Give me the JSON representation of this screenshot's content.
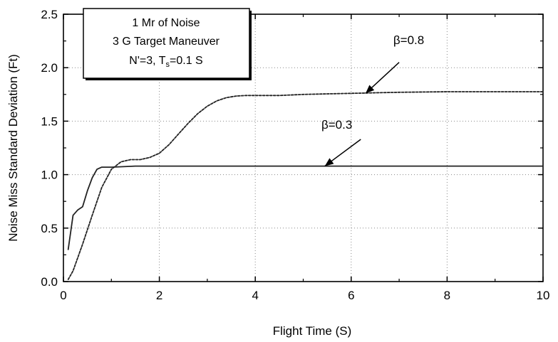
{
  "chart_data": {
    "type": "line",
    "xlabel": "Flight Time (S)",
    "ylabel": "Noise Miss Standard Deviation (Ft)",
    "xlim": [
      0,
      10
    ],
    "ylim": [
      0,
      2.5
    ],
    "xticks": [
      0,
      2,
      4,
      6,
      8,
      10
    ],
    "yticks": [
      0.0,
      0.5,
      1.0,
      1.5,
      2.0,
      2.5
    ],
    "xtick_labels": [
      "0",
      "2",
      "4",
      "6",
      "8",
      "10"
    ],
    "ytick_labels": [
      "0.0",
      "0.5",
      "1.0",
      "1.5",
      "2.0",
      "2.5"
    ],
    "grid": true,
    "legend_box": {
      "line1": "1 Mr of Noise",
      "line2": "3 G Target Maneuver",
      "line3_prefix": "N'=3,  T",
      "line3_sub": "s",
      "line3_suffix": "=0.1 S"
    },
    "series": [
      {
        "name": "β=0.3",
        "style": "solid",
        "x": [
          0.1,
          0.2,
          0.3,
          0.4,
          0.5,
          0.6,
          0.7,
          0.8,
          1.0,
          1.5,
          2.0,
          3.0,
          4.0,
          5.0,
          6.0,
          7.0,
          8.0,
          9.0,
          10.0
        ],
        "y": [
          0.3,
          0.62,
          0.67,
          0.7,
          0.85,
          0.97,
          1.05,
          1.07,
          1.07,
          1.08,
          1.08,
          1.08,
          1.08,
          1.08,
          1.08,
          1.08,
          1.08,
          1.08,
          1.08
        ]
      },
      {
        "name": "β=0.8",
        "style": "dashed",
        "x": [
          0.1,
          0.2,
          0.4,
          0.6,
          0.8,
          1.0,
          1.2,
          1.4,
          1.6,
          1.8,
          2.0,
          2.2,
          2.4,
          2.6,
          2.8,
          3.0,
          3.2,
          3.4,
          3.6,
          3.8,
          4.0,
          4.5,
          5.0,
          5.5,
          6.0,
          6.5,
          7.0,
          8.0,
          9.0,
          10.0
        ],
        "y": [
          0.02,
          0.1,
          0.35,
          0.62,
          0.88,
          1.05,
          1.12,
          1.14,
          1.14,
          1.16,
          1.2,
          1.28,
          1.38,
          1.48,
          1.57,
          1.64,
          1.69,
          1.72,
          1.735,
          1.74,
          1.74,
          1.74,
          1.75,
          1.755,
          1.76,
          1.765,
          1.77,
          1.775,
          1.775,
          1.775
        ]
      }
    ],
    "annotations": [
      {
        "text": "β=0.8",
        "series": 1,
        "label_at": [
          7.2,
          2.22
        ],
        "arrow_from": [
          7.0,
          2.05
        ],
        "arrow_to": [
          6.3,
          1.76
        ]
      },
      {
        "text": "β=0.3",
        "series": 0,
        "label_at": [
          5.7,
          1.43
        ],
        "arrow_from": [
          6.2,
          1.33
        ],
        "arrow_to": [
          5.45,
          1.08
        ]
      }
    ]
  }
}
